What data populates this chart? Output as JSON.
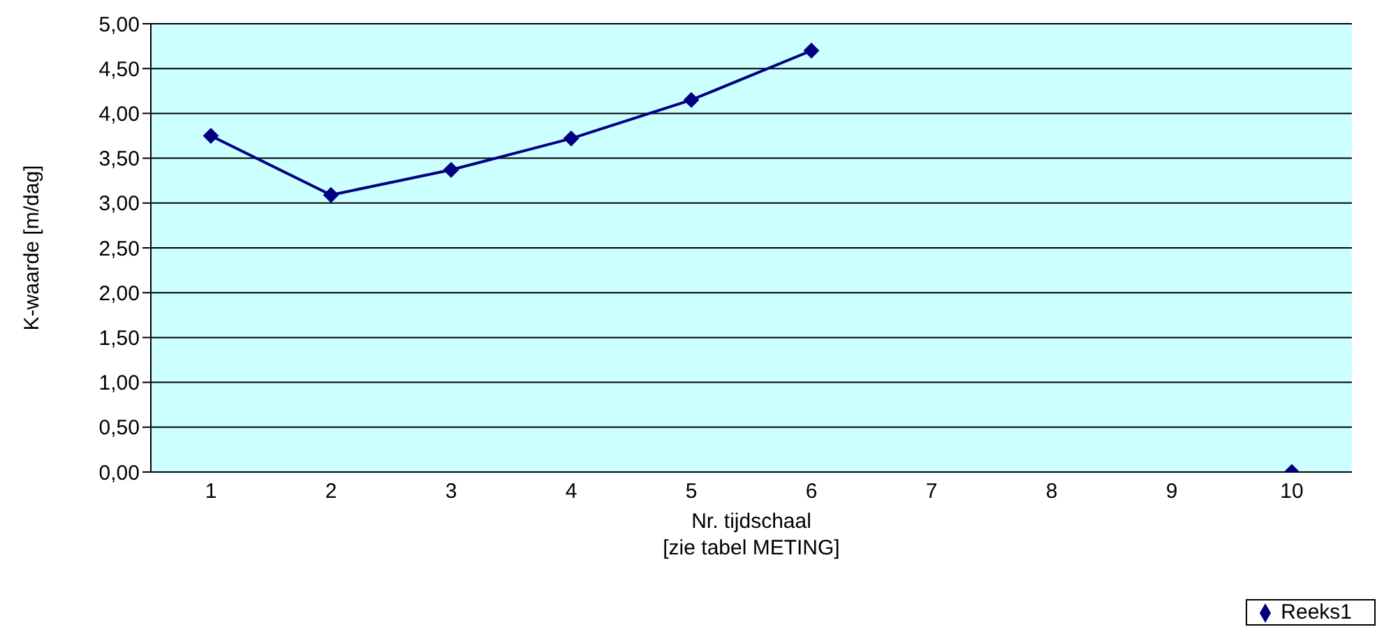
{
  "chart_data": {
    "type": "line",
    "xlabel": "Nr. tijdschaal\n[zie tabel METING]",
    "ylabel": "K-waarde [m/dag]",
    "categories": [
      "1",
      "2",
      "3",
      "4",
      "5",
      "6",
      "7",
      "8",
      "9",
      "10"
    ],
    "series": [
      {
        "name": "Reeks1",
        "color": "#000080",
        "values": [
          3.75,
          3.09,
          3.37,
          3.72,
          4.15,
          4.7,
          null,
          null,
          null,
          0
        ]
      }
    ],
    "ylim": [
      0,
      5
    ],
    "yticks": [
      {
        "value": 0,
        "label": "0,00"
      },
      {
        "value": 0.5,
        "label": "0,50"
      },
      {
        "value": 1,
        "label": "1,00"
      },
      {
        "value": 1.5,
        "label": "1,50"
      },
      {
        "value": 2,
        "label": "2,00"
      },
      {
        "value": 2.5,
        "label": "2,50"
      },
      {
        "value": 3,
        "label": "3,00"
      },
      {
        "value": 3.5,
        "label": "3,50"
      },
      {
        "value": 4,
        "label": "4,00"
      },
      {
        "value": 4.5,
        "label": "4,50"
      },
      {
        "value": 5,
        "label": "5,00"
      }
    ],
    "grid": "y",
    "legend": "bottom right",
    "marker": "diamond",
    "line_style": "solid"
  }
}
